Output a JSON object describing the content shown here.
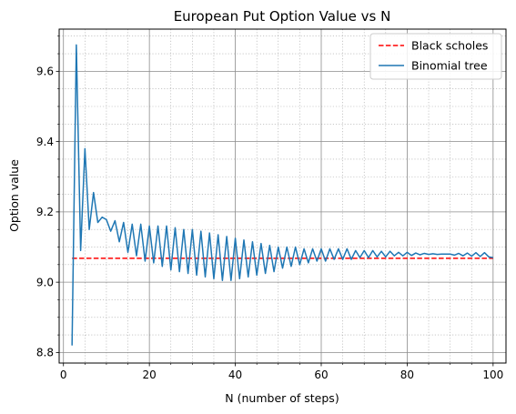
{
  "chart_data": {
    "type": "line",
    "title": "European Put Option Value vs N",
    "xlabel": "N (number of steps)",
    "ylabel": "Option value",
    "xlim": [
      -1,
      103
    ],
    "ylim": [
      8.77,
      9.72
    ],
    "xticks": [
      0,
      20,
      40,
      60,
      80,
      100
    ],
    "xtick_labels": [
      "0",
      "20",
      "40",
      "60",
      "80",
      "100"
    ],
    "yticks": [
      8.8,
      9.0,
      9.2,
      9.4,
      9.6
    ],
    "ytick_labels": [
      "8.8",
      "9.0",
      "9.2",
      "9.4",
      "9.6"
    ],
    "grid": "major and minor",
    "legend_position": "top-right",
    "series": [
      {
        "name": "Black scholes",
        "style": "dashed",
        "color": "#ff0000",
        "x": [
          2,
          100
        ],
        "y": [
          9.068,
          9.068
        ]
      },
      {
        "name": "Binomial tree",
        "style": "solid",
        "color": "#1f77b4",
        "x": [
          2,
          3,
          4,
          5,
          6,
          7,
          8,
          9,
          10,
          11,
          12,
          13,
          14,
          15,
          16,
          17,
          18,
          19,
          20,
          21,
          22,
          23,
          24,
          25,
          26,
          27,
          28,
          29,
          30,
          31,
          32,
          33,
          34,
          35,
          36,
          37,
          38,
          39,
          40,
          41,
          42,
          43,
          44,
          45,
          46,
          47,
          48,
          49,
          50,
          51,
          52,
          53,
          54,
          55,
          56,
          57,
          58,
          59,
          60,
          61,
          62,
          63,
          64,
          65,
          66,
          67,
          68,
          69,
          70,
          71,
          72,
          73,
          74,
          75,
          76,
          77,
          78,
          79,
          80,
          81,
          82,
          83,
          84,
          85,
          86,
          87,
          88,
          89,
          90,
          91,
          92,
          93,
          94,
          95,
          96,
          97,
          98,
          99,
          100
        ],
        "y": [
          8.82,
          9.675,
          9.09,
          9.38,
          9.15,
          9.255,
          9.17,
          9.185,
          9.178,
          9.145,
          9.175,
          9.115,
          9.17,
          9.085,
          9.165,
          9.075,
          9.165,
          9.06,
          9.16,
          9.055,
          9.16,
          9.045,
          9.16,
          9.035,
          9.155,
          9.03,
          9.15,
          9.025,
          9.15,
          9.02,
          9.145,
          9.015,
          9.14,
          9.01,
          9.135,
          9.005,
          9.13,
          9.005,
          9.125,
          9.01,
          9.12,
          9.015,
          9.115,
          9.02,
          9.11,
          9.025,
          9.105,
          9.03,
          9.1,
          9.04,
          9.1,
          9.045,
          9.1,
          9.05,
          9.095,
          9.055,
          9.095,
          9.06,
          9.095,
          9.06,
          9.095,
          9.065,
          9.095,
          9.065,
          9.095,
          9.065,
          9.09,
          9.07,
          9.09,
          9.07,
          9.09,
          9.072,
          9.088,
          9.072,
          9.088,
          9.075,
          9.085,
          9.075,
          9.085,
          9.076,
          9.083,
          9.078,
          9.082,
          9.079,
          9.081,
          9.079,
          9.08,
          9.08,
          9.08,
          9.077,
          9.082,
          9.075,
          9.083,
          9.074,
          9.084,
          9.073,
          9.084,
          9.072,
          9.07
        ]
      }
    ]
  }
}
